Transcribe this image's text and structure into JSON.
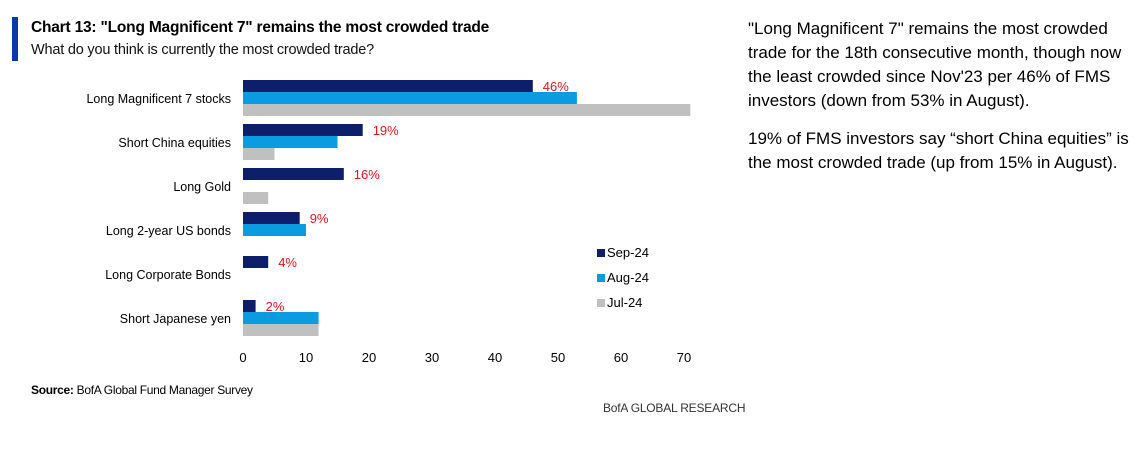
{
  "header": {
    "title": "Chart 13: \"Long Magnificent 7\" remains the most crowded trade",
    "subtitle": "What do you think is currently the most crowded trade?"
  },
  "footer": {
    "source_label": "Source:",
    "source_text": " BofA Global Fund Manager Survey",
    "brand": "BofA GLOBAL RESEARCH"
  },
  "commentary": {
    "p1": "\"Long Magnificent 7\" remains the most crowded trade for the 18th consecutive month, though now the least crowded since Nov'23 per 46% of FMS investors (down from 53% in August).",
    "p2": "19% of FMS investors say “short China equities” is the most crowded trade (up from 15% in August)."
  },
  "chart_data": {
    "type": "bar",
    "orientation": "horizontal",
    "categories": [
      "Long Magnificent 7 stocks",
      "Short China equities",
      "Long Gold",
      "Long 2-year US bonds",
      "Long Corporate Bonds",
      "Short Japanese yen"
    ],
    "series": [
      {
        "name": "Sep-24",
        "color": "#0d1f6b",
        "values": [
          46,
          19,
          16,
          9,
          4,
          2
        ]
      },
      {
        "name": "Aug-24",
        "color": "#0b9be0",
        "values": [
          53,
          15,
          null,
          10,
          null,
          12
        ]
      },
      {
        "name": "Jul-24",
        "color": "#c0c0c0",
        "values": [
          71,
          5,
          4,
          null,
          null,
          12
        ]
      }
    ],
    "data_labels": [
      "46%",
      "19%",
      "16%",
      "9%",
      "4%",
      "2%"
    ],
    "data_label_color": "#e8141a",
    "xlim": [
      0,
      70
    ],
    "xticks": [
      0,
      10,
      20,
      30,
      40,
      50,
      60,
      70
    ],
    "grid": false,
    "legend": "right"
  }
}
